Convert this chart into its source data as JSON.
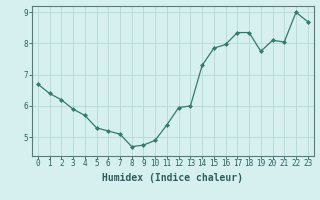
{
  "x": [
    0,
    1,
    2,
    3,
    4,
    5,
    6,
    7,
    8,
    9,
    10,
    11,
    12,
    13,
    14,
    15,
    16,
    17,
    18,
    19,
    20,
    21,
    22,
    23
  ],
  "y": [
    6.7,
    6.4,
    6.2,
    5.9,
    5.7,
    5.3,
    5.2,
    5.1,
    4.7,
    4.75,
    4.9,
    5.4,
    5.95,
    6.0,
    7.3,
    7.85,
    7.97,
    8.35,
    8.35,
    7.75,
    8.1,
    8.05,
    9.0,
    8.7
  ],
  "xlim": [
    -0.5,
    23.5
  ],
  "ylim": [
    4.4,
    9.2
  ],
  "yticks": [
    5,
    6,
    7,
    8,
    9
  ],
  "xticks": [
    0,
    1,
    2,
    3,
    4,
    5,
    6,
    7,
    8,
    9,
    10,
    11,
    12,
    13,
    14,
    15,
    16,
    17,
    18,
    19,
    20,
    21,
    22,
    23
  ],
  "xlabel": "Humidex (Indice chaleur)",
  "line_color": "#2e7d6e",
  "marker": "D",
  "marker_size": 2.0,
  "bg_color": "#d6efef",
  "grid_color": "#b8d8d8",
  "axis_color": "#5a7a7a",
  "tick_color": "#2e5f5f",
  "label_fontsize": 7,
  "tick_fontsize": 5.5
}
